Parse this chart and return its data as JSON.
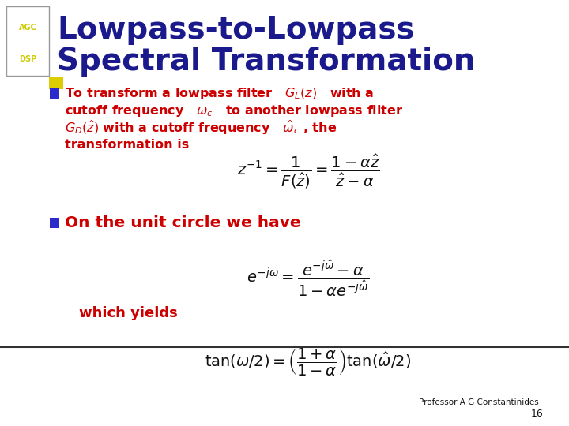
{
  "title_line1": "Lowpass-to-Lowpass",
  "title_line2": "Spectral Transformation",
  "title_color": "#1a1a8c",
  "title_fontsize": 28,
  "agc_text": "AGC",
  "dsp_text": "DSP",
  "agc_color": "#cccc00",
  "box_color": "#888888",
  "bullet_color": "#2b2bcc",
  "text_color_red": "#cc0000",
  "text_color_black": "#111111",
  "background_color": "#ffffff",
  "slide_number": "16",
  "footer_text": "Professor A G Constantinides"
}
